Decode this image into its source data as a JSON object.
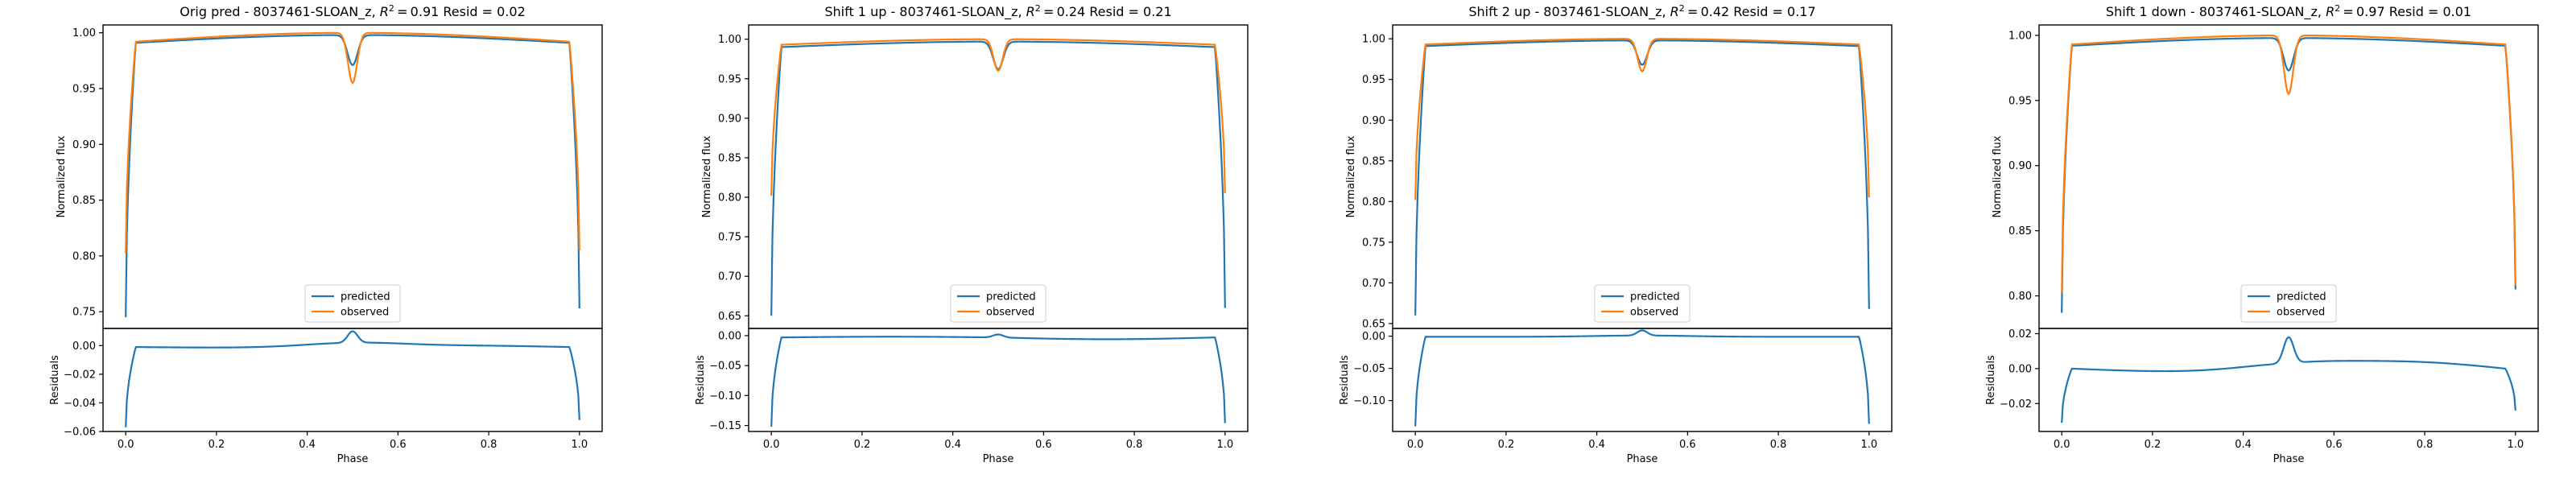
{
  "figure": {
    "background": "#ffffff"
  },
  "chart_data": [
    {
      "type": "line",
      "title": "Orig pred - 8037461-SLOAN_z, R² = 0.91 Resid = 0.02",
      "title_parts": {
        "prefix": "Orig pred - 8037461-SLOAN_z, ",
        "r2": "0.91",
        "resid_label": " Resid = ",
        "resid": "0.02"
      },
      "xlabel": "Phase",
      "ylabel_top": "Normalized flux",
      "ylabel_bottom": "Residuals",
      "xlim": [
        -0.05,
        1.05
      ],
      "xticks": [
        0.0,
        0.2,
        0.4,
        0.6,
        0.8,
        1.0
      ],
      "xtick_labels": [
        "0.0",
        "0.2",
        "0.4",
        "0.6",
        "0.8",
        "1.0"
      ],
      "top": {
        "ylim": [
          0.735,
          1.007
        ],
        "yticks": [
          0.75,
          0.8,
          0.85,
          0.9,
          0.95,
          1.0
        ],
        "ytick_labels": [
          "0.75",
          "0.80",
          "0.85",
          "0.90",
          "0.95",
          "1.00"
        ],
        "legend": {
          "placement": "lower center",
          "entries": [
            "predicted",
            "observed"
          ]
        },
        "series": [
          {
            "name": "predicted",
            "color": "#1f77b4",
            "edge_start": 0.745,
            "edge_end": 0.753,
            "plateau_edge": 0.991,
            "plateau_mid": 0.998,
            "dip_depth": 0.027,
            "dip_width": 0.011
          },
          {
            "name": "observed",
            "color": "#ff7f0e",
            "edge_start": 0.802,
            "edge_end": 0.805,
            "plateau_edge": 0.992,
            "plateau_mid": 1.0,
            "dip_depth": 0.045,
            "dip_width": 0.01
          }
        ]
      },
      "bottom": {
        "ylim": [
          -0.06,
          0.012
        ],
        "yticks": [
          -0.06,
          -0.04,
          -0.02,
          0.0
        ],
        "ytick_labels": [
          "−0.06",
          "−0.04",
          "−0.02",
          "0.00"
        ],
        "series": [
          {
            "name": "residual",
            "color": "#1f77b4",
            "edge_start": -0.057,
            "edge_end": -0.052,
            "plateau_edge": -0.001,
            "plateau_mid": -0.002,
            "bump_base": 0.003,
            "bump": 0.008
          }
        ]
      }
    },
    {
      "type": "line",
      "title": "Shift 1 up - 8037461-SLOAN_z, R² = 0.24 Resid = 0.21",
      "title_parts": {
        "prefix": "Shift 1 up - 8037461-SLOAN_z, ",
        "r2": "0.24",
        "resid_label": " Resid = ",
        "resid": "0.21"
      },
      "xlabel": "Phase",
      "ylabel_top": "Normalized flux",
      "ylabel_bottom": "Residuals",
      "xlim": [
        -0.05,
        1.05
      ],
      "xticks": [
        0.0,
        0.2,
        0.4,
        0.6,
        0.8,
        1.0
      ],
      "xtick_labels": [
        "0.0",
        "0.2",
        "0.4",
        "0.6",
        "0.8",
        "1.0"
      ],
      "top": {
        "ylim": [
          0.634,
          1.018
        ],
        "yticks": [
          0.65,
          0.7,
          0.75,
          0.8,
          0.85,
          0.9,
          0.95,
          1.0
        ],
        "ytick_labels": [
          "0.65",
          "0.70",
          "0.75",
          "0.80",
          "0.85",
          "0.90",
          "0.95",
          "1.00"
        ],
        "legend": {
          "placement": "lower center",
          "entries": [
            "predicted",
            "observed"
          ]
        },
        "series": [
          {
            "name": "predicted",
            "color": "#1f77b4",
            "edge_start": 0.65,
            "edge_end": 0.66,
            "plateau_edge": 0.99,
            "plateau_mid": 0.997,
            "dip_depth": 0.035,
            "dip_width": 0.011
          },
          {
            "name": "observed",
            "color": "#ff7f0e",
            "edge_start": 0.802,
            "edge_end": 0.805,
            "plateau_edge": 0.993,
            "plateau_mid": 1.0,
            "dip_depth": 0.04,
            "dip_width": 0.01
          }
        ]
      },
      "bottom": {
        "ylim": [
          -0.16,
          0.012
        ],
        "yticks": [
          -0.15,
          -0.1,
          -0.05,
          0.0
        ],
        "ytick_labels": [
          "−0.15",
          "−0.10",
          "−0.05",
          "0.00"
        ],
        "series": [
          {
            "name": "residual",
            "color": "#1f77b4",
            "edge_start": -0.152,
            "edge_end": -0.146,
            "plateau_edge": -0.003,
            "plateau_mid": 0.0,
            "bump_base": 0.0,
            "bump": 0.005
          }
        ]
      }
    },
    {
      "type": "line",
      "title": "Shift 2 up - 8037461-SLOAN_z, R² = 0.42 Resid = 0.17",
      "title_parts": {
        "prefix": "Shift 2 up - 8037461-SLOAN_z, ",
        "r2": "0.42",
        "resid_label": " Resid = ",
        "resid": "0.17"
      },
      "xlabel": "Phase",
      "ylabel_top": "Normalized flux",
      "ylabel_bottom": "Residuals",
      "xlim": [
        -0.05,
        1.05
      ],
      "xticks": [
        0.0,
        0.2,
        0.4,
        0.6,
        0.8,
        1.0
      ],
      "xtick_labels": [
        "0.0",
        "0.2",
        "0.4",
        "0.6",
        "0.8",
        "1.0"
      ],
      "top": {
        "ylim": [
          0.644,
          1.017
        ],
        "yticks": [
          0.65,
          0.7,
          0.75,
          0.8,
          0.85,
          0.9,
          0.95,
          1.0
        ],
        "ytick_labels": [
          "0.65",
          "0.70",
          "0.75",
          "0.80",
          "0.85",
          "0.90",
          "0.95",
          "1.00"
        ],
        "legend": {
          "placement": "lower center",
          "entries": [
            "predicted",
            "observed"
          ]
        },
        "series": [
          {
            "name": "predicted",
            "color": "#1f77b4",
            "edge_start": 0.66,
            "edge_end": 0.668,
            "plateau_edge": 0.991,
            "plateau_mid": 0.998,
            "dip_depth": 0.03,
            "dip_width": 0.011
          },
          {
            "name": "observed",
            "color": "#ff7f0e",
            "edge_start": 0.802,
            "edge_end": 0.805,
            "plateau_edge": 0.993,
            "plateau_mid": 1.0,
            "dip_depth": 0.04,
            "dip_width": 0.01
          }
        ]
      },
      "bottom": {
        "ylim": [
          -0.148,
          0.012
        ],
        "yticks": [
          -0.1,
          -0.05,
          0.0
        ],
        "ytick_labels": [
          "−0.10",
          "−0.05",
          "0.00"
        ],
        "series": [
          {
            "name": "residual",
            "color": "#1f77b4",
            "edge_start": -0.14,
            "edge_end": -0.136,
            "plateau_edge": -0.001,
            "plateau_mid": -0.001,
            "bump_base": 0.002,
            "bump": 0.008
          }
        ]
      }
    },
    {
      "type": "line",
      "title": "Shift 1 down - 8037461-SLOAN_z, R² = 0.97 Resid = 0.01",
      "title_parts": {
        "prefix": "Shift 1 down - 8037461-SLOAN_z, ",
        "r2": "0.97",
        "resid_label": " Resid = ",
        "resid": "0.01"
      },
      "xlabel": "Phase",
      "ylabel_top": "Normalized flux",
      "ylabel_bottom": "Residuals",
      "xlim": [
        -0.05,
        1.05
      ],
      "xticks": [
        0.0,
        0.2,
        0.4,
        0.6,
        0.8,
        1.0
      ],
      "xtick_labels": [
        "0.0",
        "0.2",
        "0.4",
        "0.6",
        "0.8",
        "1.0"
      ],
      "top": {
        "ylim": [
          0.775,
          1.008
        ],
        "yticks": [
          0.8,
          0.85,
          0.9,
          0.95,
          1.0
        ],
        "ytick_labels": [
          "0.80",
          "0.85",
          "0.90",
          "0.95",
          "1.00"
        ],
        "legend": {
          "placement": "lower center",
          "entries": [
            "predicted",
            "observed"
          ]
        },
        "series": [
          {
            "name": "predicted",
            "color": "#1f77b4",
            "edge_start": 0.787,
            "edge_end": 0.805,
            "plateau_edge": 0.992,
            "plateau_mid": 0.998,
            "dip_depth": 0.025,
            "dip_width": 0.011
          },
          {
            "name": "observed",
            "color": "#ff7f0e",
            "edge_start": 0.802,
            "edge_end": 0.808,
            "plateau_edge": 0.993,
            "plateau_mid": 1.0,
            "dip_depth": 0.045,
            "dip_width": 0.01
          }
        ]
      },
      "bottom": {
        "ylim": [
          -0.036,
          0.023
        ],
        "yticks": [
          -0.02,
          0.0,
          0.02
        ],
        "ytick_labels": [
          "−0.02",
          "0.00",
          "0.02"
        ],
        "series": [
          {
            "name": "residual",
            "color": "#1f77b4",
            "edge_start": -0.031,
            "edge_end": -0.024,
            "plateau_edge": 0.0,
            "plateau_mid": -0.004,
            "bump_base": 0.003,
            "bump": 0.015
          }
        ]
      }
    }
  ]
}
